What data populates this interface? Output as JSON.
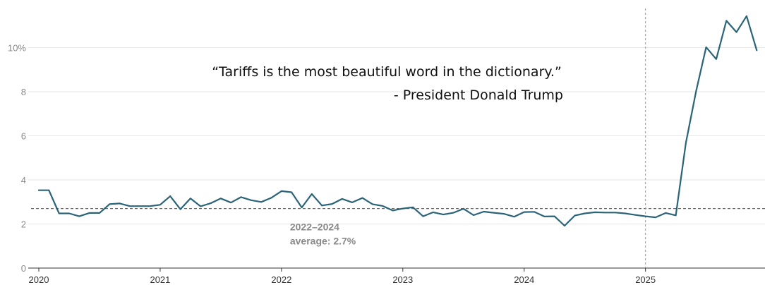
{
  "chart_data": {
    "type": "line",
    "title": "",
    "xlabel": "",
    "ylabel": "",
    "ylim": [
      0,
      12
    ],
    "xlim": [
      2020.0,
      2025.95
    ],
    "grid": true,
    "y_ticks": [
      {
        "value": 0,
        "label": "0"
      },
      {
        "value": 2,
        "label": "2"
      },
      {
        "value": 4,
        "label": "4"
      },
      {
        "value": 6,
        "label": "6"
      },
      {
        "value": 8,
        "label": "8"
      },
      {
        "value": 10,
        "label": "10%"
      }
    ],
    "x_ticks": [
      {
        "value": 2020,
        "label": "2020"
      },
      {
        "value": 2021,
        "label": "2021"
      },
      {
        "value": 2022,
        "label": "2022"
      },
      {
        "value": 2023,
        "label": "2023"
      },
      {
        "value": 2024,
        "label": "2024"
      },
      {
        "value": 2025,
        "label": "2025"
      }
    ],
    "series": [
      {
        "color": "#2a6478",
        "x": [
          2020.0,
          2020.083,
          2020.167,
          2020.25,
          2020.333,
          2020.417,
          2020.5,
          2020.583,
          2020.667,
          2020.75,
          2020.833,
          2020.917,
          2021.0,
          2021.083,
          2021.167,
          2021.25,
          2021.333,
          2021.417,
          2021.5,
          2021.583,
          2021.667,
          2021.75,
          2021.833,
          2021.917,
          2022.0,
          2022.083,
          2022.167,
          2022.25,
          2022.333,
          2022.417,
          2022.5,
          2022.583,
          2022.667,
          2022.75,
          2022.833,
          2022.917,
          2023.0,
          2023.083,
          2023.167,
          2023.25,
          2023.333,
          2023.417,
          2023.5,
          2023.583,
          2023.667,
          2023.75,
          2023.833,
          2023.917,
          2024.0,
          2024.083,
          2024.167,
          2024.25,
          2024.333,
          2024.417,
          2024.5,
          2024.583,
          2024.667,
          2024.75,
          2024.833,
          2024.917,
          2025.0,
          2025.083,
          2025.167,
          2025.25,
          2025.333,
          2025.417,
          2025.5,
          2025.583,
          2025.667,
          2025.75,
          2025.833,
          2025.917
        ],
        "values": [
          3.53,
          3.53,
          2.48,
          2.48,
          2.35,
          2.5,
          2.5,
          2.9,
          2.93,
          2.81,
          2.81,
          2.81,
          2.87,
          3.26,
          2.67,
          3.16,
          2.8,
          2.94,
          3.16,
          2.97,
          3.22,
          3.08,
          3.0,
          3.19,
          3.49,
          3.44,
          2.75,
          3.36,
          2.84,
          2.91,
          3.14,
          2.98,
          3.18,
          2.9,
          2.82,
          2.61,
          2.7,
          2.76,
          2.35,
          2.53,
          2.43,
          2.51,
          2.69,
          2.4,
          2.56,
          2.51,
          2.46,
          2.33,
          2.54,
          2.55,
          2.34,
          2.35,
          1.92,
          2.38,
          2.48,
          2.53,
          2.52,
          2.52,
          2.48,
          2.41,
          2.35,
          2.3,
          2.5,
          2.39,
          5.68,
          8.03,
          10.02,
          9.48,
          11.22,
          10.7,
          11.43,
          9.88
        ]
      }
    ],
    "reference_lines": [
      {
        "type": "horizontal",
        "value": 2.7,
        "style": "dashed",
        "label_line1": "2022–2024",
        "label_line2": "average: 2.7%"
      },
      {
        "type": "vertical",
        "value": 2025.0,
        "style": "dashed"
      }
    ],
    "annotations": {
      "quote": "“Tariffs is the most beautiful word in the dictionary.”",
      "attribution": "- President Donald Trump"
    }
  }
}
